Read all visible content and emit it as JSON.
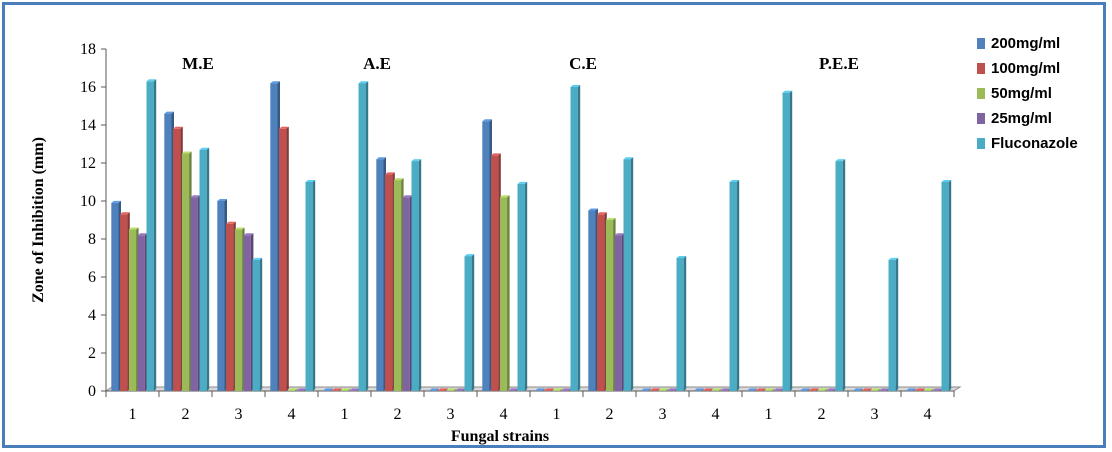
{
  "chart_data": {
    "type": "bar",
    "xlabel": "Fungal strains",
    "ylabel": "Zone of Inhibition  (mm)",
    "ylim": [
      0,
      18
    ],
    "yticks": [
      0,
      2,
      4,
      6,
      8,
      10,
      12,
      14,
      16,
      18
    ],
    "grid": false,
    "legend_position": "right",
    "groups": [
      "M.E",
      "A.E",
      "C.E",
      "P.E.E"
    ],
    "categories": [
      "1",
      "2",
      "3",
      "4",
      "1",
      "2",
      "3",
      "4",
      "1",
      "2",
      "3",
      "4",
      "1",
      "2",
      "3",
      "4"
    ],
    "series": [
      {
        "name": "200mg/ml",
        "color": "#4f81bd",
        "values": [
          9.9,
          14.6,
          10.0,
          16.2,
          0,
          12.2,
          0,
          14.2,
          0,
          9.5,
          0,
          0,
          0,
          0,
          0,
          0
        ]
      },
      {
        "name": "100mg/ml",
        "color": "#c0504d",
        "values": [
          9.3,
          13.8,
          8.8,
          13.8,
          0,
          11.4,
          0,
          12.4,
          0,
          9.3,
          0,
          0,
          0,
          0,
          0,
          0
        ]
      },
      {
        "name": "50mg/ml",
        "color": "#9bbb59",
        "values": [
          8.5,
          12.5,
          8.5,
          0,
          0,
          11.1,
          0,
          10.2,
          0,
          9.0,
          0,
          0,
          0,
          0,
          0,
          0
        ]
      },
      {
        "name": "25mg/ml",
        "color": "#8064a2",
        "values": [
          8.2,
          10.2,
          8.2,
          0,
          0,
          10.2,
          0,
          0,
          0,
          8.2,
          0,
          0,
          0,
          0,
          0,
          0
        ]
      },
      {
        "name": "Fluconazole",
        "color": "#4bacc6",
        "values": [
          16.3,
          12.7,
          6.9,
          11.0,
          16.2,
          12.1,
          7.1,
          10.9,
          16.0,
          12.2,
          7.0,
          11.0,
          15.7,
          12.1,
          6.9,
          11.0
        ]
      }
    ]
  }
}
